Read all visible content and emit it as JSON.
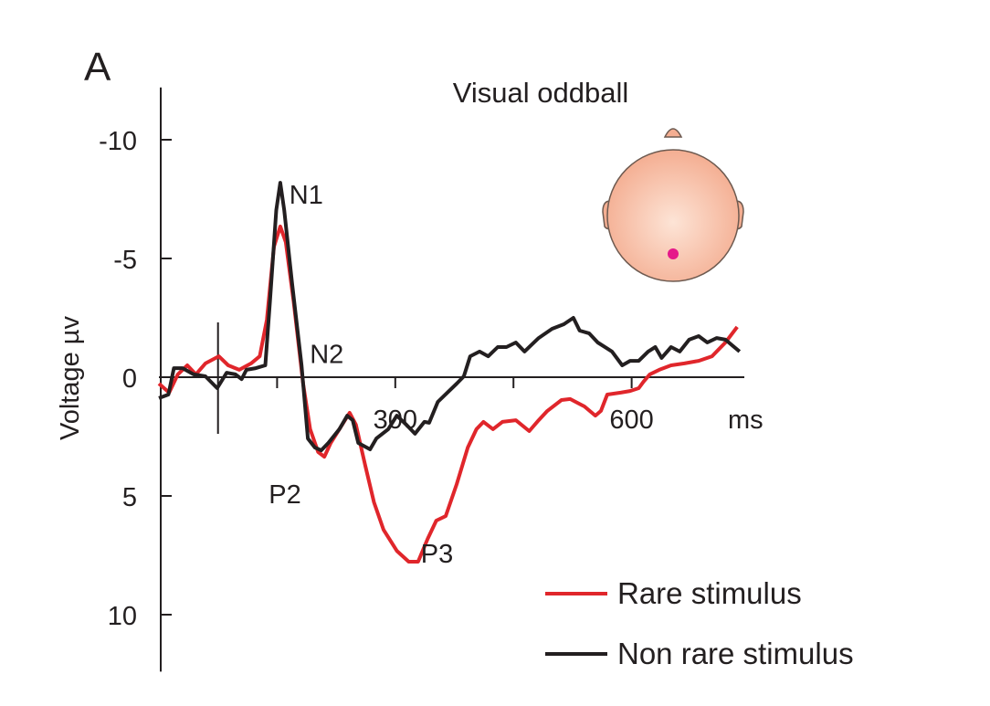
{
  "chart_data": {
    "type": "line",
    "panel_label": "A",
    "title": "Visual oddball",
    "xlabel": "ms",
    "ylabel": "Voltage µv",
    "xlim": [
      0,
      743
    ],
    "ylim": [
      -12.2,
      12.4
    ],
    "y_inverted": true,
    "grid": false,
    "x_ticks": [
      150,
      300,
      450,
      600
    ],
    "x_tick_labels": [
      {
        "value": 300,
        "label": "300"
      },
      {
        "value": 600,
        "label": "600"
      }
    ],
    "y_ticks": [
      {
        "value": -10,
        "label": "-10"
      },
      {
        "value": -5,
        "label": "-5"
      },
      {
        "value": 0,
        "label": "0"
      },
      {
        "value": 5,
        "label": "5"
      },
      {
        "value": 10,
        "label": "10"
      }
    ],
    "stimulus_marker_ms": 75,
    "annotations": [
      {
        "text": "N1",
        "x": 187,
        "y": -7.3
      },
      {
        "text": "N2",
        "x": 213,
        "y": -0.6
      },
      {
        "text": "P2",
        "x": 160,
        "y": 5.3
      },
      {
        "text": "P3",
        "x": 353,
        "y": 7.8
      }
    ],
    "legend_placement": "bottom-right",
    "series": [
      {
        "name": "Rare stimulus",
        "color": "#e0262b",
        "x": [
          0,
          13,
          24,
          36,
          47,
          59,
          76,
          88,
          102,
          117,
          128,
          137,
          146,
          154,
          161,
          171,
          183,
          192,
          202,
          210,
          218,
          229,
          242,
          250,
          262,
          273,
          285,
          302,
          317,
          329,
          341,
          352,
          364,
          378,
          392,
          403,
          412,
          424,
          436,
          453,
          470,
          482,
          493,
          511,
          522,
          540,
          554,
          561,
          569,
          586,
          598,
          609,
          615,
          623,
          635,
          650,
          667,
          685,
          702,
          719,
          734
        ],
        "y": [
          0.27,
          0.65,
          -0.12,
          -0.5,
          -0.12,
          -0.58,
          -0.88,
          -0.5,
          -0.31,
          -0.58,
          -0.88,
          -2.42,
          -5.5,
          -6.35,
          -5.69,
          -3.19,
          0.27,
          2.19,
          3.15,
          3.35,
          2.77,
          2.19,
          1.5,
          2.0,
          3.73,
          5.27,
          6.42,
          7.31,
          7.77,
          7.77,
          6.81,
          6.04,
          5.85,
          4.5,
          2.96,
          2.19,
          1.88,
          2.19,
          1.88,
          1.81,
          2.27,
          1.81,
          1.42,
          0.96,
          0.92,
          1.23,
          1.62,
          1.42,
          0.73,
          0.65,
          0.58,
          0.46,
          0.19,
          -0.12,
          -0.31,
          -0.5,
          -0.58,
          -0.69,
          -0.88,
          -1.46,
          -2.12
        ]
      },
      {
        "name": "Non rare stimulus",
        "color": "#231f20",
        "x": [
          0,
          12,
          19,
          30,
          44,
          59,
          74,
          86,
          97,
          105,
          111,
          123,
          135,
          141,
          149,
          154,
          159,
          169,
          181,
          189,
          198,
          206,
          215,
          229,
          239,
          246,
          253,
          268,
          276,
          291,
          302,
          314,
          325,
          337,
          343,
          354,
          366,
          378,
          387,
          395,
          407,
          418,
          430,
          441,
          453,
          464,
          482,
          499,
          514,
          526,
          534,
          546,
          557,
          575,
          588,
          598,
          609,
          621,
          630,
          638,
          650,
          661,
          673,
          685,
          696,
          708,
          719,
          737
        ],
        "y": [
          0.88,
          0.73,
          -0.38,
          -0.38,
          -0.12,
          -0.04,
          0.46,
          -0.19,
          -0.12,
          0.08,
          -0.31,
          -0.38,
          -0.5,
          -3.19,
          -7.04,
          -8.19,
          -7.04,
          -3.96,
          -0.5,
          2.58,
          2.96,
          3.08,
          2.77,
          2.19,
          1.62,
          1.81,
          2.77,
          3.04,
          2.58,
          2.19,
          1.62,
          2.0,
          2.38,
          1.88,
          1.92,
          1.04,
          0.65,
          0.27,
          -0.04,
          -0.88,
          -1.08,
          -0.88,
          -1.27,
          -1.27,
          -1.46,
          -1.08,
          -1.65,
          -2.04,
          -2.23,
          -2.5,
          -1.96,
          -1.85,
          -1.46,
          -1.08,
          -0.5,
          -0.69,
          -0.69,
          -1.08,
          -1.27,
          -0.81,
          -1.27,
          -1.08,
          -1.58,
          -1.73,
          -1.46,
          -1.65,
          -1.58,
          -1.08
        ]
      }
    ],
    "inset": {
      "type": "head-topography",
      "electrode_color": "#e5198a",
      "head_color": "#f6b9a0"
    }
  }
}
